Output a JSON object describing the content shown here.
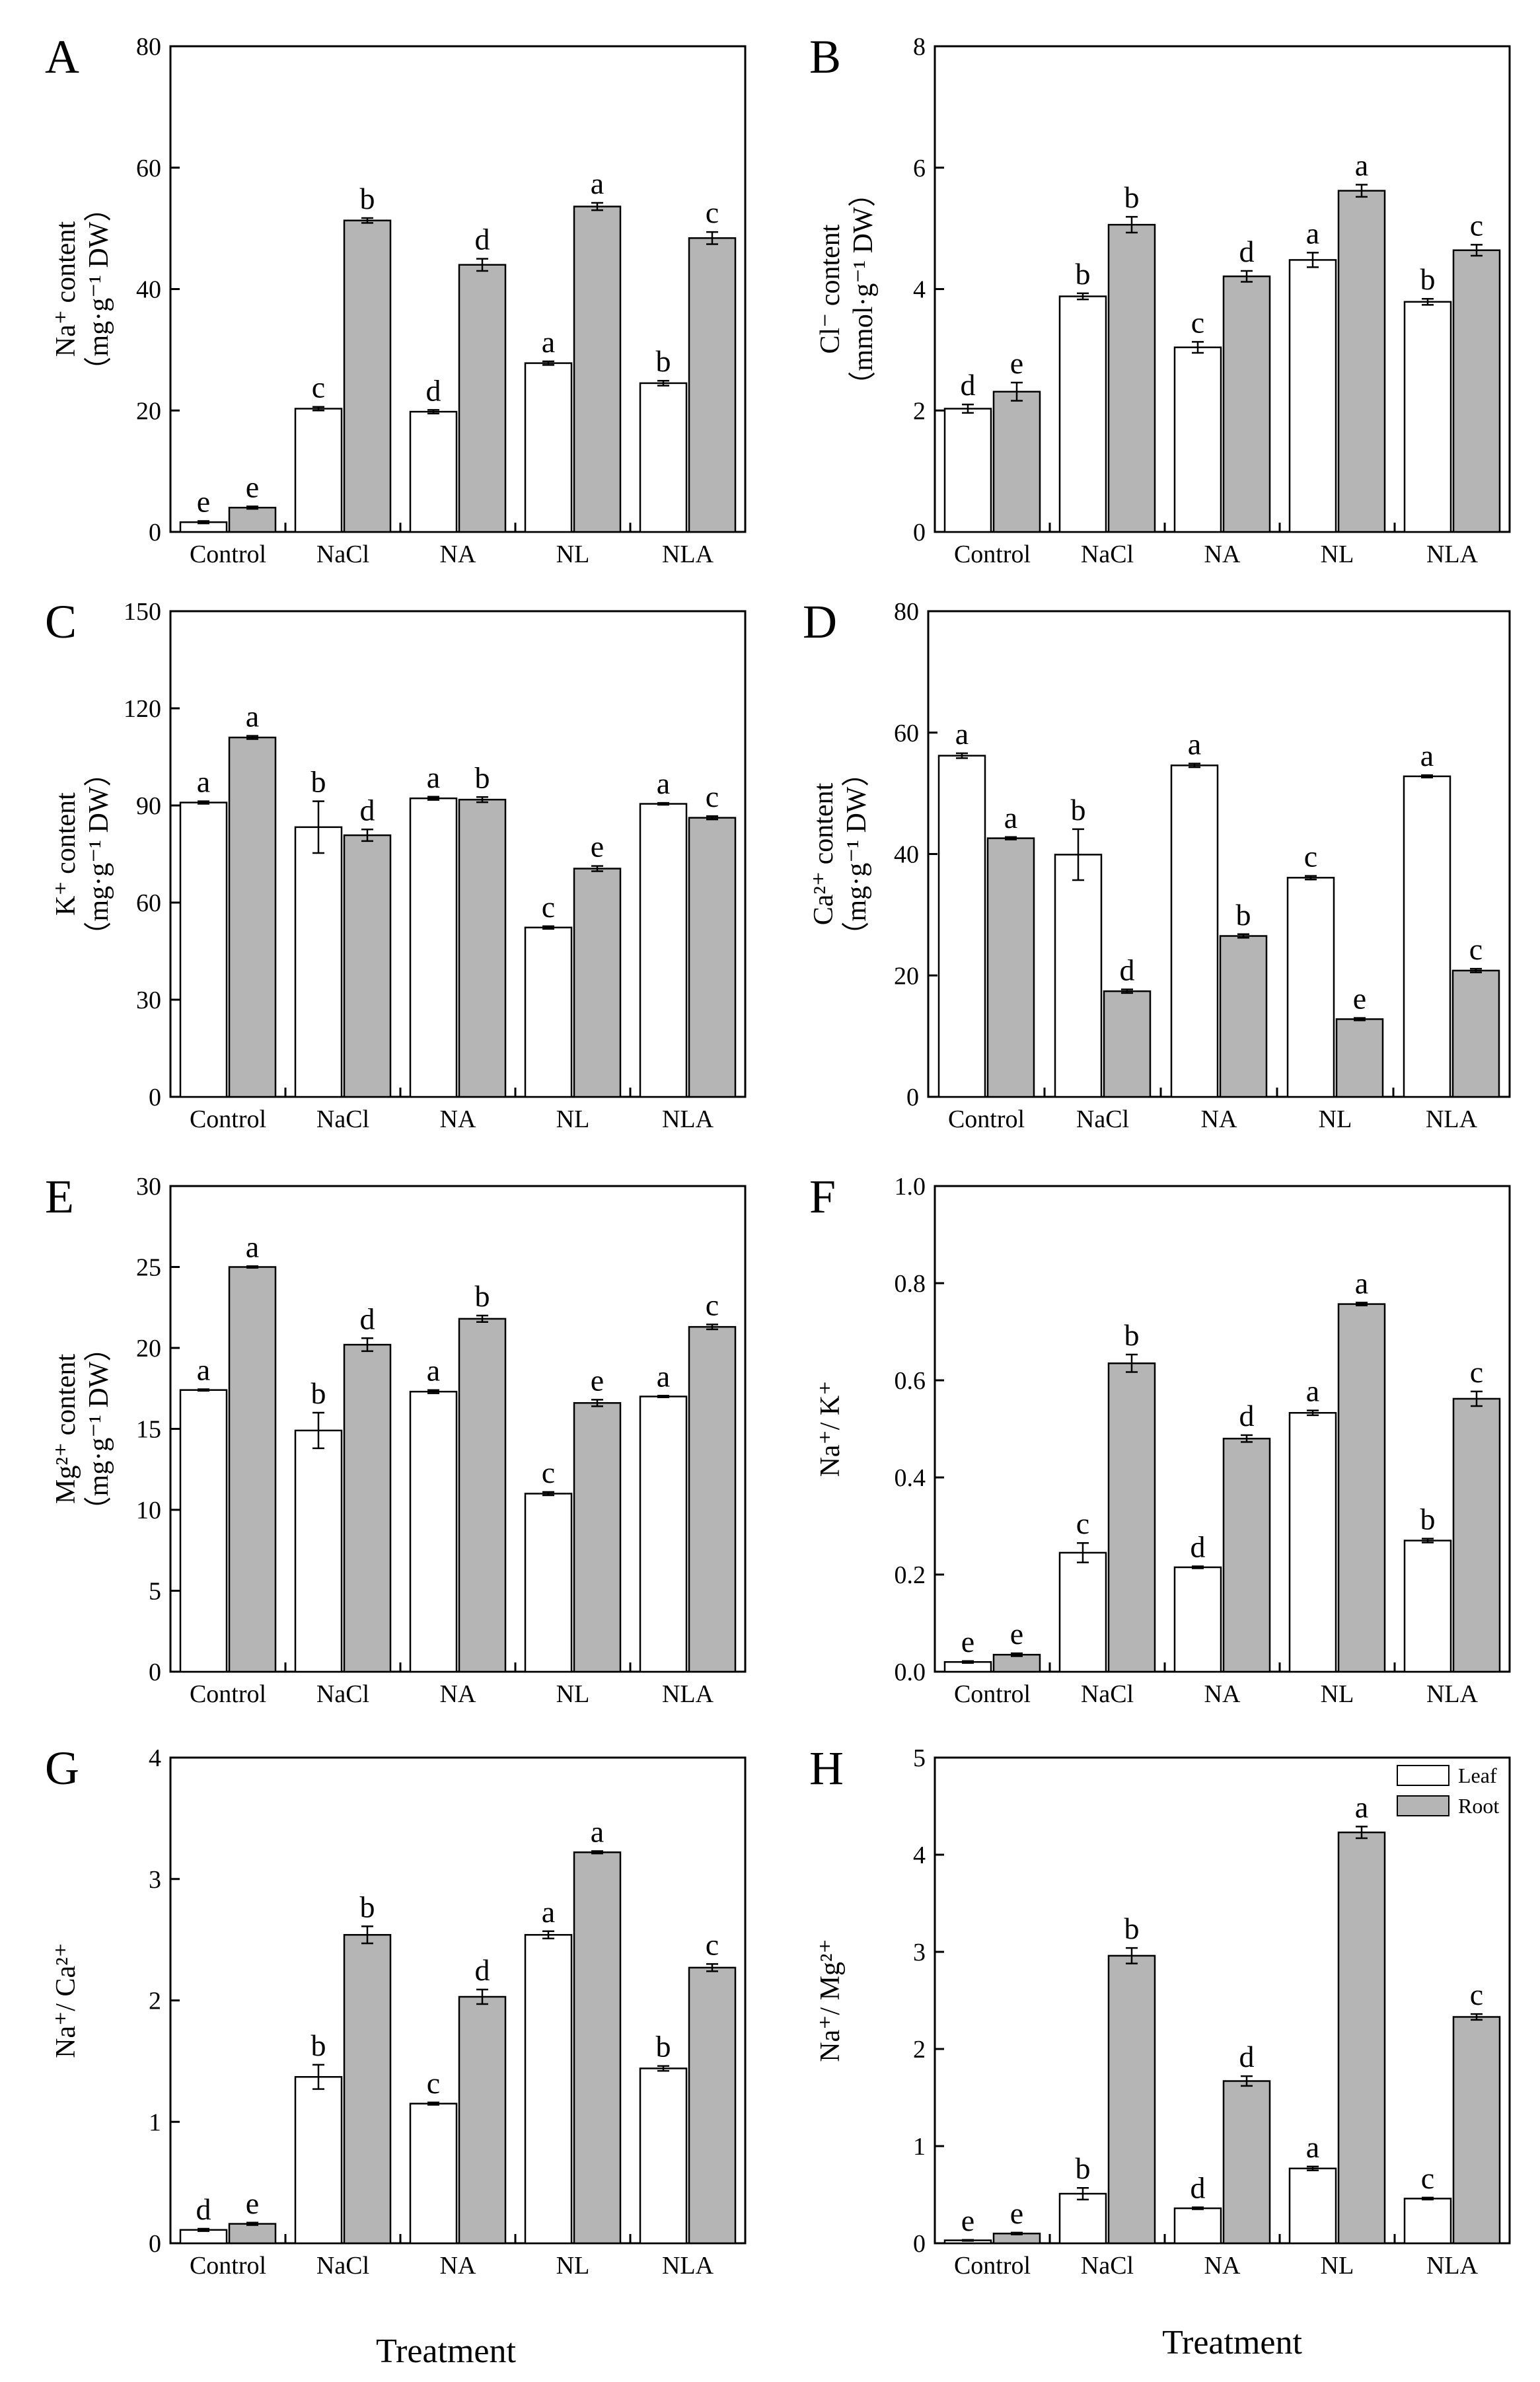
{
  "colors": {
    "leaf": "#ffffff",
    "root": "#b5b5b5",
    "stroke": "#000000"
  },
  "legend": {
    "leaf": "Leaf",
    "root": "Root"
  },
  "x_title": "Treatment",
  "categories": [
    "Control",
    "NaCl",
    "NA",
    "NL",
    "NLA"
  ],
  "chart_data": [
    {
      "id": "A",
      "type": "bar",
      "panel_label": "A",
      "ylabel": [
        "Na⁺ content",
        "（mg·g⁻¹ DW）"
      ],
      "ylim": [
        0,
        80
      ],
      "yticks": [
        0,
        20,
        40,
        60,
        80
      ],
      "series": [
        {
          "name": "Leaf",
          "values": [
            1.6,
            20.3,
            19.8,
            27.8,
            24.5
          ],
          "errors": [
            0.2,
            0.3,
            0.3,
            0.3,
            0.4
          ],
          "letters": [
            "e",
            "c",
            "d",
            "a",
            "b"
          ]
        },
        {
          "name": "Root",
          "values": [
            4.0,
            51.3,
            44.0,
            53.6,
            48.4
          ],
          "errors": [
            0.2,
            0.4,
            1.0,
            0.6,
            1.0
          ],
          "letters": [
            "e",
            "b",
            "d",
            "a",
            "c"
          ]
        }
      ]
    },
    {
      "id": "B",
      "type": "bar",
      "panel_label": "B",
      "ylabel": [
        "Cl⁻ content",
        "（mmol·g⁻¹ DW）"
      ],
      "ylim": [
        0,
        8
      ],
      "yticks": [
        0,
        2,
        4,
        6,
        8
      ],
      "series": [
        {
          "name": "Leaf",
          "values": [
            2.03,
            3.88,
            3.04,
            4.48,
            3.79
          ],
          "errors": [
            0.07,
            0.05,
            0.09,
            0.12,
            0.05
          ],
          "letters": [
            "d",
            "b",
            "c",
            "a",
            "b"
          ]
        },
        {
          "name": "Root",
          "values": [
            2.31,
            5.06,
            4.21,
            5.62,
            4.64
          ],
          "errors": [
            0.15,
            0.13,
            0.09,
            0.1,
            0.09
          ],
          "letters": [
            "e",
            "b",
            "d",
            "a",
            "c"
          ]
        }
      ]
    },
    {
      "id": "C",
      "type": "bar",
      "panel_label": "C",
      "ylabel": [
        "K⁺ content",
        "（mg·g⁻¹ DW）"
      ],
      "ylim": [
        0,
        150
      ],
      "yticks": [
        0,
        30,
        60,
        90,
        120,
        150
      ],
      "series": [
        {
          "name": "Leaf",
          "values": [
            90.9,
            83.3,
            92.2,
            52.3,
            90.5
          ],
          "errors": [
            0.4,
            8.0,
            0.5,
            0.4,
            0.3
          ],
          "letters": [
            "a",
            "b",
            "a",
            "c",
            "a"
          ]
        },
        {
          "name": "Root",
          "values": [
            111.0,
            80.8,
            91.8,
            70.5,
            86.2
          ],
          "errors": [
            0.5,
            1.8,
            0.8,
            0.8,
            0.5
          ],
          "letters": [
            "a",
            "d",
            "b",
            "e",
            "c"
          ]
        }
      ]
    },
    {
      "id": "D",
      "type": "bar",
      "panel_label": "D",
      "ylabel": [
        "Ca²⁺ content",
        "（mg·g⁻¹ DW）"
      ],
      "ylim": [
        0,
        80
      ],
      "yticks": [
        0,
        20,
        40,
        60,
        80
      ],
      "series": [
        {
          "name": "Leaf",
          "values": [
            56.2,
            39.9,
            54.6,
            36.1,
            52.8
          ],
          "errors": [
            0.4,
            4.2,
            0.3,
            0.3,
            0.2
          ],
          "letters": [
            "a",
            "b",
            "a",
            "c",
            "a"
          ]
        },
        {
          "name": "Root",
          "values": [
            42.6,
            17.4,
            26.5,
            12.8,
            20.8
          ],
          "errors": [
            0.2,
            0.3,
            0.3,
            0.2,
            0.3
          ],
          "letters": [
            "a",
            "d",
            "b",
            "e",
            "c"
          ]
        }
      ]
    },
    {
      "id": "E",
      "type": "bar",
      "panel_label": "E",
      "ylabel": [
        "Mg²⁺ content",
        "（mg·g⁻¹ DW）"
      ],
      "ylim": [
        0,
        30
      ],
      "yticks": [
        0,
        5,
        10,
        15,
        20,
        25,
        30
      ],
      "series": [
        {
          "name": "Leaf",
          "values": [
            17.4,
            14.9,
            17.3,
            11.0,
            17.0
          ],
          "errors": [
            0.05,
            1.1,
            0.1,
            0.1,
            0.05
          ],
          "letters": [
            "a",
            "b",
            "a",
            "c",
            "a"
          ]
        },
        {
          "name": "Root",
          "values": [
            25.0,
            20.2,
            21.8,
            16.6,
            21.3
          ],
          "errors": [
            0.05,
            0.4,
            0.2,
            0.2,
            0.15
          ],
          "letters": [
            "a",
            "d",
            "b",
            "e",
            "c"
          ]
        }
      ]
    },
    {
      "id": "F",
      "type": "bar",
      "panel_label": "F",
      "ylabel": [
        "Na⁺/ K⁺"
      ],
      "ylim": [
        0,
        1.0
      ],
      "yticks": [
        0.0,
        0.2,
        0.4,
        0.6,
        0.8,
        1.0
      ],
      "series": [
        {
          "name": "Leaf",
          "values": [
            0.02,
            0.245,
            0.215,
            0.533,
            0.27
          ],
          "errors": [
            0.002,
            0.02,
            0.002,
            0.005,
            0.004
          ],
          "letters": [
            "e",
            "c",
            "d",
            "a",
            "b"
          ]
        },
        {
          "name": "Root",
          "values": [
            0.035,
            0.635,
            0.48,
            0.757,
            0.562
          ],
          "errors": [
            0.003,
            0.018,
            0.007,
            0.003,
            0.015
          ],
          "letters": [
            "e",
            "b",
            "d",
            "a",
            "c"
          ]
        }
      ]
    },
    {
      "id": "G",
      "type": "bar",
      "panel_label": "G",
      "ylabel": [
        "Na⁺/ Ca²⁺"
      ],
      "ylim": [
        0,
        4
      ],
      "yticks": [
        0,
        1,
        2,
        3,
        4
      ],
      "series": [
        {
          "name": "Leaf",
          "values": [
            0.11,
            1.37,
            1.15,
            2.54,
            1.44
          ],
          "errors": [
            0.01,
            0.1,
            0.01,
            0.03,
            0.02
          ],
          "letters": [
            "d",
            "b",
            "c",
            "a",
            "b"
          ]
        },
        {
          "name": "Root",
          "values": [
            0.16,
            2.54,
            2.03,
            3.22,
            2.27
          ],
          "errors": [
            0.01,
            0.07,
            0.06,
            0.01,
            0.03
          ],
          "letters": [
            "e",
            "b",
            "d",
            "a",
            "c"
          ]
        }
      ]
    },
    {
      "id": "H",
      "type": "bar",
      "panel_label": "H",
      "ylabel": [
        "Na⁺/ Mg²⁺"
      ],
      "ylim": [
        0,
        5
      ],
      "yticks": [
        0,
        1,
        2,
        3,
        4,
        5
      ],
      "legend": true,
      "series": [
        {
          "name": "Leaf",
          "values": [
            0.03,
            0.51,
            0.36,
            0.77,
            0.46
          ],
          "errors": [
            0.005,
            0.06,
            0.01,
            0.02,
            0.01
          ],
          "letters": [
            "e",
            "b",
            "d",
            "a",
            "c"
          ]
        },
        {
          "name": "Root",
          "values": [
            0.1,
            2.96,
            1.67,
            4.23,
            2.33
          ],
          "errors": [
            0.01,
            0.08,
            0.05,
            0.06,
            0.03
          ],
          "letters": [
            "e",
            "b",
            "d",
            "a",
            "c"
          ]
        }
      ]
    }
  ]
}
